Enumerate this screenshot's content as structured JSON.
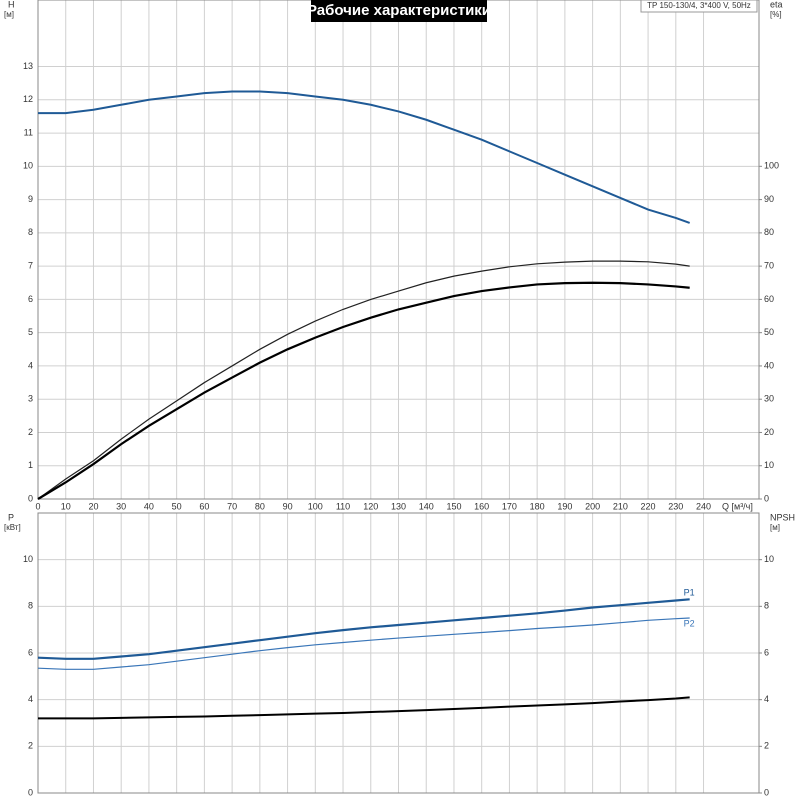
{
  "chart_data": [
    {
      "type": "line",
      "title": "Рабочие характеристики",
      "subtitle": "TP 150-130/4, 3*400 V, 50Hz",
      "ylabel": "H",
      "yunit": "[м]",
      "y2label": "eta",
      "y2unit": "[%]",
      "xlabel": "Q [м³/ч]",
      "x": [
        0,
        10,
        20,
        30,
        40,
        50,
        60,
        70,
        80,
        90,
        100,
        110,
        120,
        130,
        140,
        150,
        160,
        170,
        180,
        190,
        200,
        210,
        220,
        230,
        235
      ],
      "xlim": [
        0,
        260
      ],
      "xticks": [
        0,
        10,
        20,
        30,
        40,
        50,
        60,
        70,
        80,
        90,
        100,
        110,
        120,
        130,
        140,
        150,
        160,
        170,
        180,
        190,
        200,
        210,
        220,
        230,
        240
      ],
      "ylim": [
        0,
        15
      ],
      "yticks": [
        0,
        1,
        2,
        3,
        4,
        5,
        6,
        7,
        8,
        9,
        10,
        11,
        12,
        13
      ],
      "y2lim": [
        0,
        150
      ],
      "y2ticks": [
        0,
        10,
        20,
        30,
        40,
        50,
        60,
        70,
        80,
        90,
        100
      ],
      "grid": true,
      "series": [
        {
          "color": "#1f5a96",
          "values": [
            11.6,
            11.6,
            11.7,
            11.85,
            12.0,
            12.1,
            12.2,
            12.25,
            12.25,
            12.2,
            12.1,
            12.0,
            11.85,
            11.65,
            11.4,
            11.1,
            10.8,
            10.45,
            10.1,
            9.75,
            9.4,
            9.05,
            8.7,
            8.45,
            8.3
          ]
        },
        {
          "color": "#222222",
          "axis": "y2",
          "values": [
            0,
            6,
            11.5,
            18,
            24,
            29.5,
            35,
            40,
            45,
            49.5,
            53.5,
            57,
            60,
            62.5,
            65,
            67,
            68.5,
            69.8,
            70.7,
            71.2,
            71.5,
            71.5,
            71.3,
            70.6,
            70
          ]
        },
        {
          "color": "#000000",
          "axis": "y2",
          "values": [
            0,
            5,
            10.5,
            16.5,
            22,
            27,
            32,
            36.5,
            41,
            45,
            48.5,
            51.7,
            54.5,
            57,
            59,
            61,
            62.5,
            63.6,
            64.5,
            64.9,
            65,
            64.9,
            64.5,
            63.9,
            63.5
          ]
        }
      ]
    },
    {
      "type": "line",
      "ylabel": "P",
      "yunit": "[кВт]",
      "y2label": "NPSH",
      "y2unit": "[м]",
      "x": [
        0,
        10,
        20,
        30,
        40,
        50,
        60,
        70,
        80,
        90,
        100,
        110,
        120,
        130,
        140,
        150,
        160,
        170,
        180,
        190,
        200,
        210,
        220,
        230,
        235
      ],
      "xlim": [
        0,
        260
      ],
      "ylim": [
        0,
        12
      ],
      "yticks": [
        0,
        2,
        4,
        6,
        8,
        10
      ],
      "y2lim": [
        0,
        12
      ],
      "y2ticks": [
        0,
        2,
        4,
        6,
        8,
        10
      ],
      "grid": true,
      "series": [
        {
          "name": "P1",
          "color": "#1f5a96",
          "values": [
            5.8,
            5.75,
            5.75,
            5.85,
            5.95,
            6.1,
            6.25,
            6.4,
            6.55,
            6.7,
            6.85,
            6.98,
            7.1,
            7.2,
            7.3,
            7.4,
            7.5,
            7.6,
            7.7,
            7.82,
            7.95,
            8.05,
            8.15,
            8.25,
            8.3
          ]
        },
        {
          "name": "P2",
          "color": "#3a76b8",
          "values": [
            5.35,
            5.3,
            5.3,
            5.4,
            5.5,
            5.65,
            5.8,
            5.95,
            6.1,
            6.23,
            6.35,
            6.45,
            6.55,
            6.64,
            6.72,
            6.8,
            6.88,
            6.96,
            7.05,
            7.12,
            7.2,
            7.3,
            7.4,
            7.47,
            7.5
          ]
        },
        {
          "color": "#000000",
          "axis": "y2",
          "values": [
            3.2,
            3.2,
            3.2,
            3.22,
            3.24,
            3.26,
            3.28,
            3.31,
            3.34,
            3.37,
            3.4,
            3.43,
            3.47,
            3.51,
            3.55,
            3.6,
            3.65,
            3.7,
            3.75,
            3.8,
            3.85,
            3.92,
            3.98,
            4.05,
            4.1
          ]
        }
      ]
    }
  ]
}
